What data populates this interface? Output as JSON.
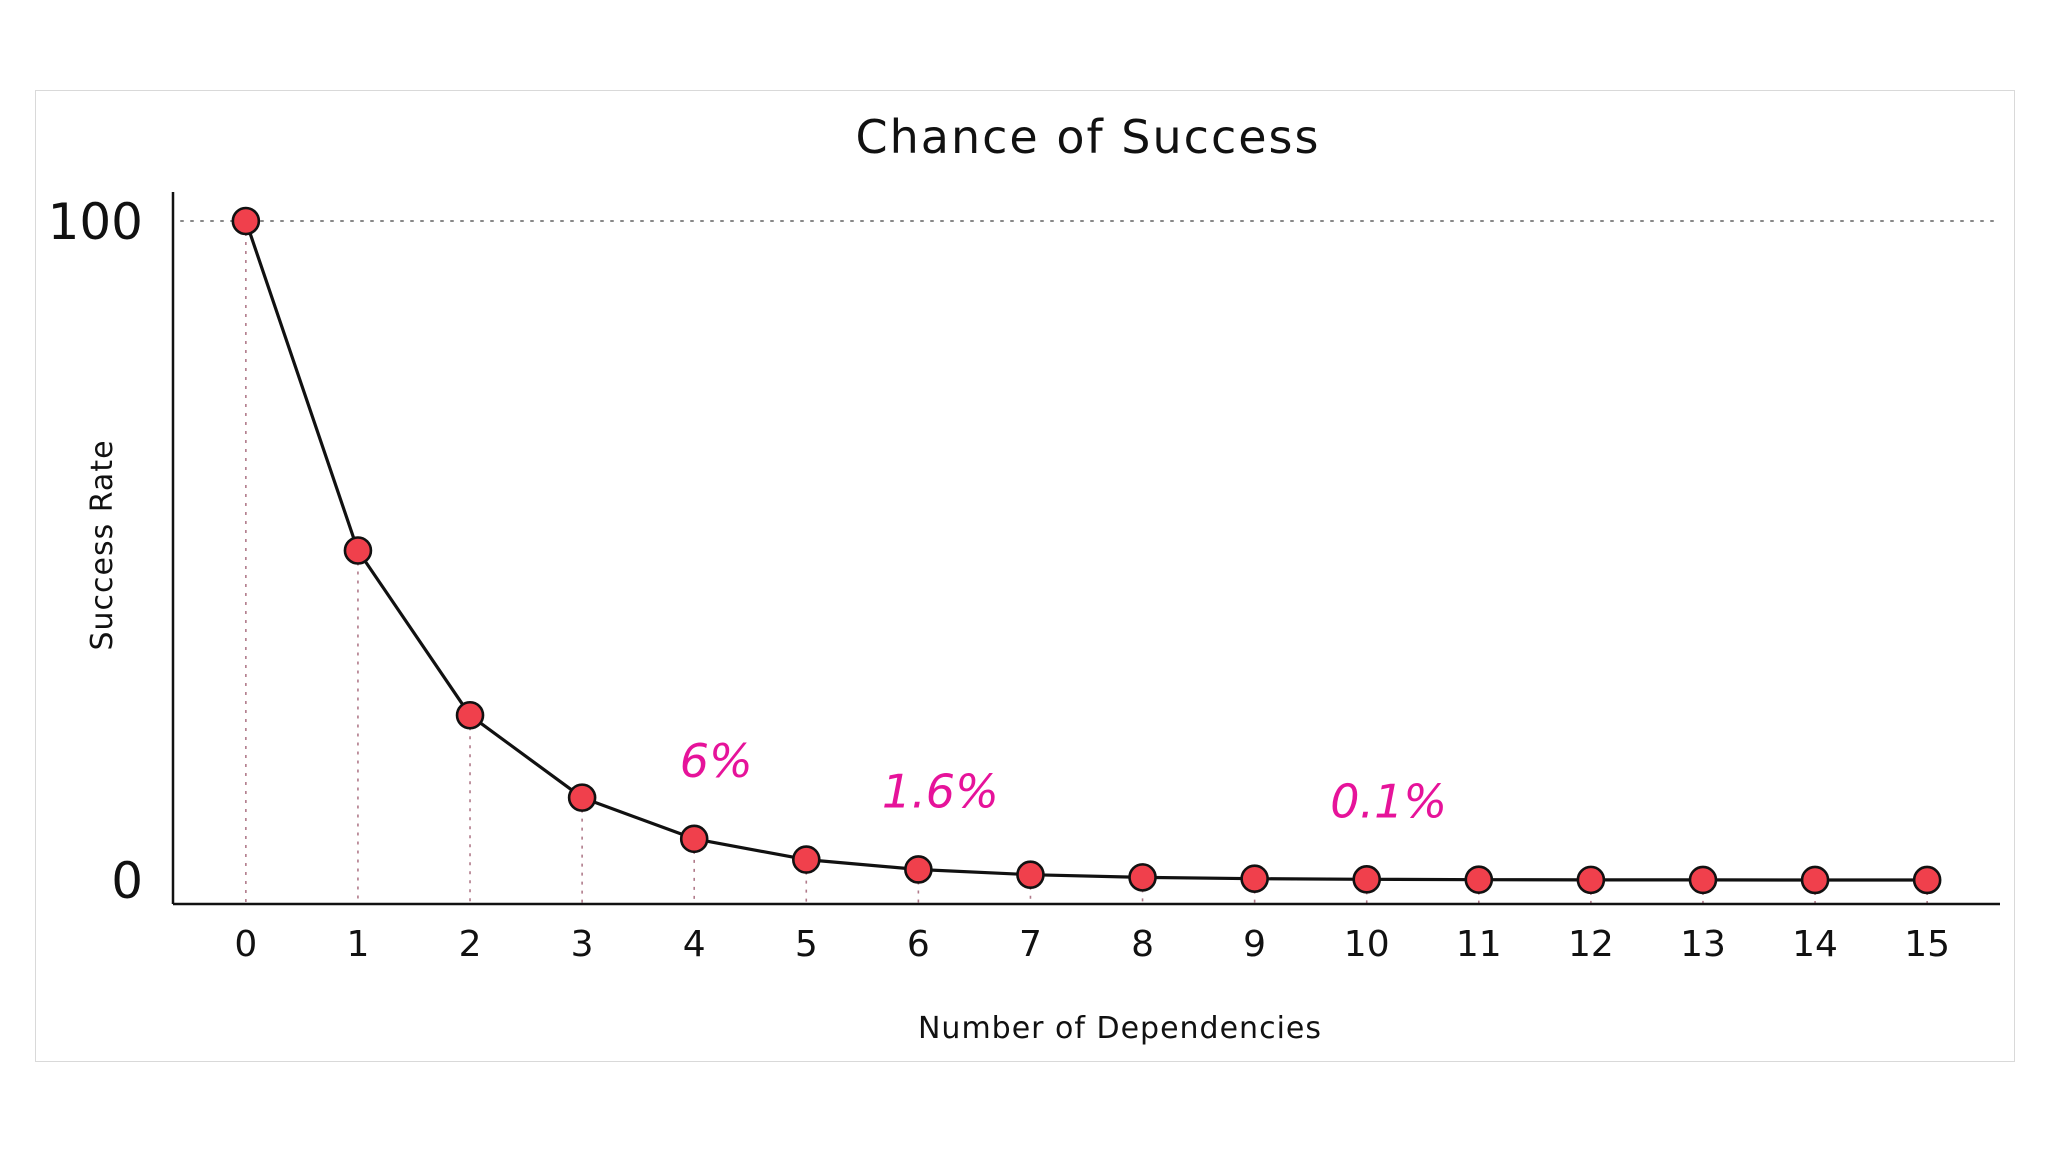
{
  "chart_data": {
    "type": "line",
    "title": "Chance of Success",
    "xlabel": "Number of Dependencies",
    "ylabel": "Success Rate",
    "x": [
      0,
      1,
      2,
      3,
      4,
      5,
      6,
      7,
      8,
      9,
      10,
      11,
      12,
      13,
      14,
      15
    ],
    "xtick_labels": [
      "0",
      "1",
      "2",
      "3",
      "4",
      "5",
      "6",
      "7",
      "8",
      "9",
      "10",
      "11",
      "12",
      "13",
      "14",
      "15"
    ],
    "yticks": [
      {
        "value": 0,
        "label": "0"
      },
      {
        "value": 100,
        "label": "100"
      }
    ],
    "ylim": [
      0,
      100
    ],
    "xlim": [
      -0.65,
      15.65
    ],
    "grid": "dotted reference lines at y=100 and from each point down to the x-axis",
    "series": [
      {
        "name": "Success Rate",
        "values": [
          100,
          50,
          25,
          12.5,
          6.25,
          3.1,
          1.6,
          0.8,
          0.4,
          0.2,
          0.1,
          0.05,
          0.02,
          0.01,
          0.006,
          0.003
        ],
        "line_color": "#111111",
        "marker_color": "#f0404c"
      }
    ],
    "annotations": [
      {
        "text": "6%",
        "x": 4,
        "y": 6.25
      },
      {
        "text": "1.6%",
        "x": 6,
        "y": 1.6
      },
      {
        "text": "0.1%",
        "x": 10,
        "y": 0.1
      }
    ],
    "annotation_color": "#e6139a"
  }
}
